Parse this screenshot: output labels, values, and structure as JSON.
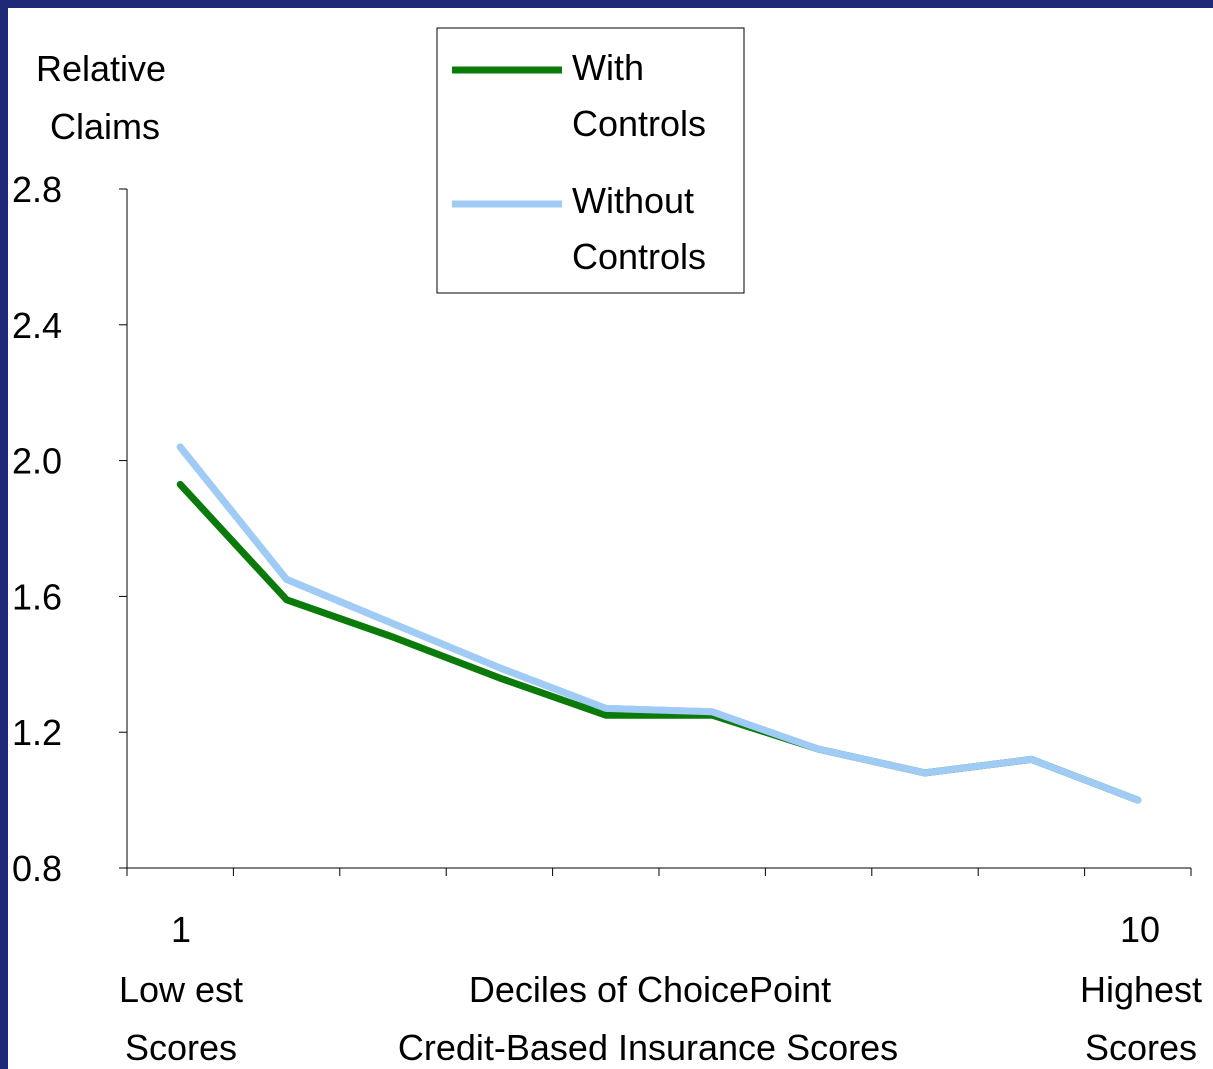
{
  "chart_data": {
    "type": "line",
    "ylabel_line1": "Relative",
    "ylabel_line2": "Claims",
    "xlabel_line1": "Deciles of ChoicePoint",
    "xlabel_line2": "Credit-Based Insurance Scores",
    "x_left_number": "1",
    "x_left_caption_line1": "Low est",
    "x_left_caption_line2": "Scores",
    "x_right_number": "10",
    "x_right_caption_line1": "Highest",
    "x_right_caption_line2": "Scores",
    "ylim": [
      0.8,
      2.8
    ],
    "yticks": [
      "0.8",
      "1.2",
      "1.6",
      "2.0",
      "2.4",
      "2.8"
    ],
    "ytick_values": [
      0.8,
      1.2,
      1.6,
      2.0,
      2.4,
      2.8
    ],
    "x": [
      1,
      2,
      3,
      4,
      5,
      6,
      7,
      8,
      9,
      10
    ],
    "legend_position": "top-center",
    "series": [
      {
        "name": "With Controls",
        "name_line1": "With",
        "name_line2": "Controls",
        "color": "#0a7a0a",
        "values": [
          1.93,
          1.59,
          1.48,
          1.36,
          1.25,
          1.25,
          1.15,
          1.08,
          1.12,
          1.0
        ]
      },
      {
        "name": "Without Controls",
        "name_line1": "Without",
        "name_line2": "Controls",
        "color": "#9fcbf5",
        "values": [
          2.04,
          1.65,
          1.52,
          1.39,
          1.27,
          1.26,
          1.15,
          1.08,
          1.12,
          1.0
        ]
      }
    ]
  },
  "colors": {
    "slide_border": "#1e2a78",
    "background": "#ffffff"
  }
}
